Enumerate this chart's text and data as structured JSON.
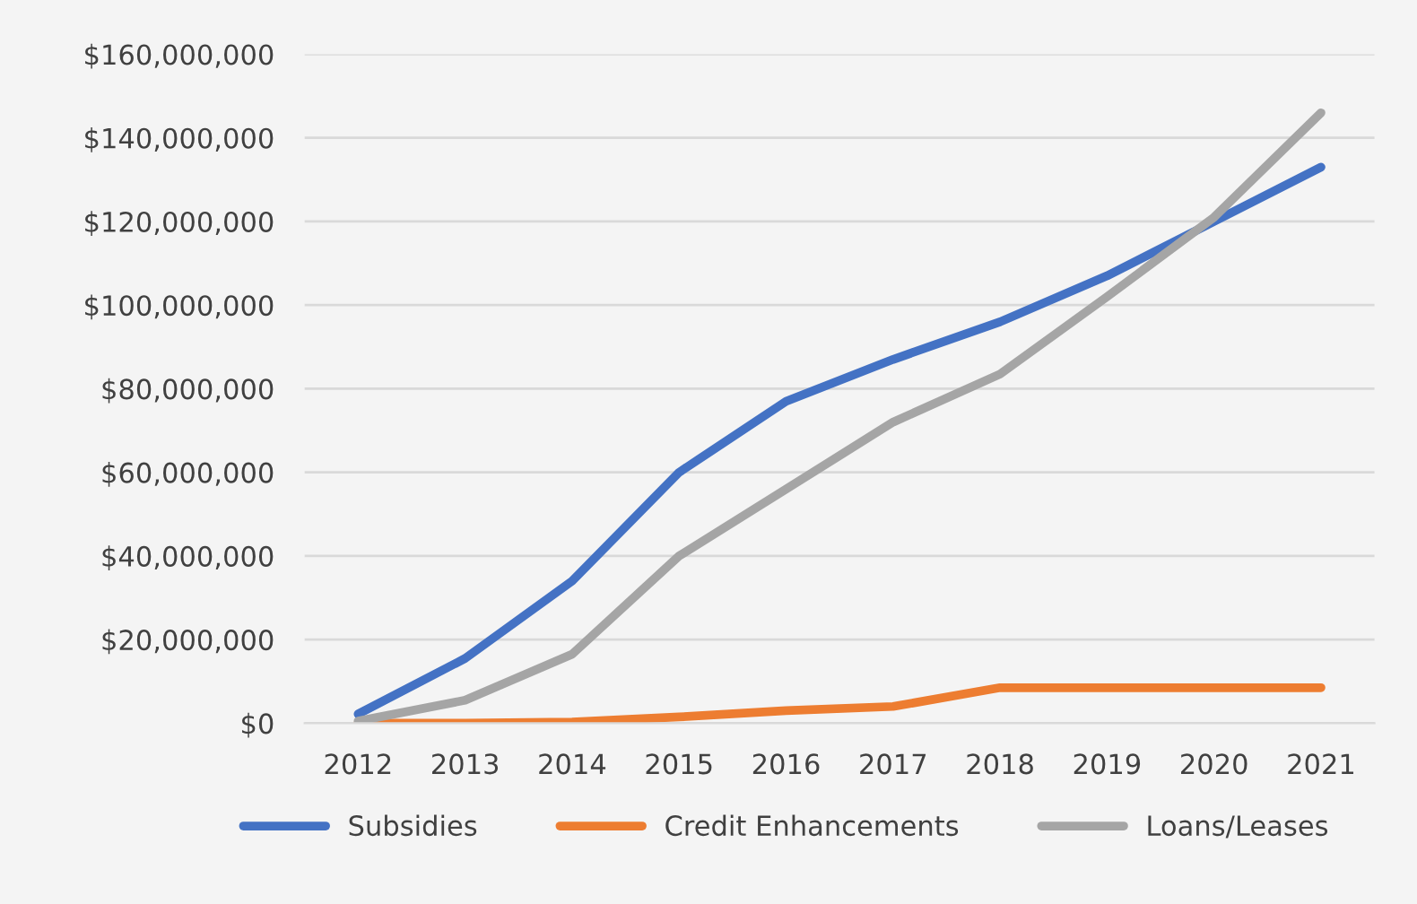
{
  "chart_data": {
    "type": "line",
    "categories": [
      "2012",
      "2013",
      "2014",
      "2015",
      "2016",
      "2017",
      "2018",
      "2019",
      "2020",
      "2021"
    ],
    "series": [
      {
        "name": "Subsidies",
        "color": "#4472c4",
        "values": [
          2200000,
          15500000,
          34000000,
          60000000,
          77000000,
          87000000,
          96000000,
          107000000,
          120000000,
          133000000
        ]
      },
      {
        "name": "Credit Enhancements",
        "color": "#ed7d31",
        "values": [
          0,
          0,
          300000,
          1500000,
          3000000,
          4000000,
          8500000,
          8500000,
          8500000,
          8500000
        ]
      },
      {
        "name": "Loans/Leases",
        "color": "#a5a5a5",
        "values": [
          500000,
          5500000,
          16500000,
          40000000,
          56000000,
          72000000,
          83500000,
          102000000,
          121000000,
          146000000
        ]
      }
    ],
    "ylim": [
      0,
      160000000
    ],
    "yticks": [
      {
        "value": 0,
        "label": "$0"
      },
      {
        "value": 20000000,
        "label": "$20,000,000"
      },
      {
        "value": 40000000,
        "label": "$40,000,000"
      },
      {
        "value": 60000000,
        "label": "$60,000,000"
      },
      {
        "value": 80000000,
        "label": "$80,000,000"
      },
      {
        "value": 100000000,
        "label": "$100,000,000"
      },
      {
        "value": 120000000,
        "label": "$120,000,000"
      },
      {
        "value": 140000000,
        "label": "$140,000,000"
      },
      {
        "value": 160000000,
        "label": "$160,000,000"
      }
    ],
    "grid": "y",
    "legend": "bottom",
    "marker": "none",
    "line_style": "solid"
  }
}
